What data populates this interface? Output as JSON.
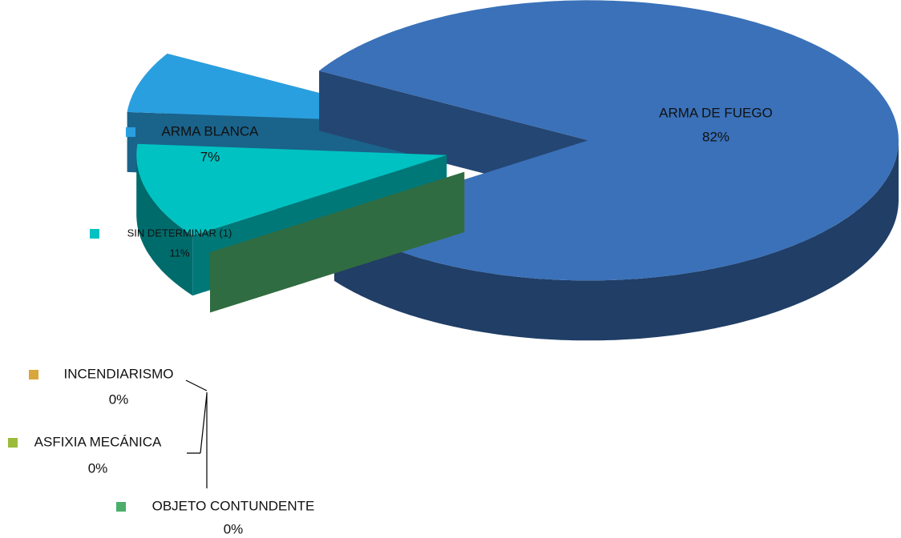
{
  "chart_data": {
    "type": "pie",
    "categories": [
      "ARMA DE FUEGO",
      "ARMA BLANCA",
      "SIN DETERMINAR (1)",
      "INCENDIARISMO",
      "ASFIXIA MECÁNICA",
      "OBJETO CONTUNDENTE"
    ],
    "values": [
      82,
      7,
      11,
      0,
      0,
      0
    ],
    "value_labels": [
      "82%",
      "7%",
      "11%",
      "0%",
      "0%",
      "0%"
    ],
    "colors": [
      "#3a71b9",
      "#2a9fe0",
      "#00c2c2",
      "#d9a63a",
      "#9bbb3b",
      "#4bae6b"
    ]
  }
}
